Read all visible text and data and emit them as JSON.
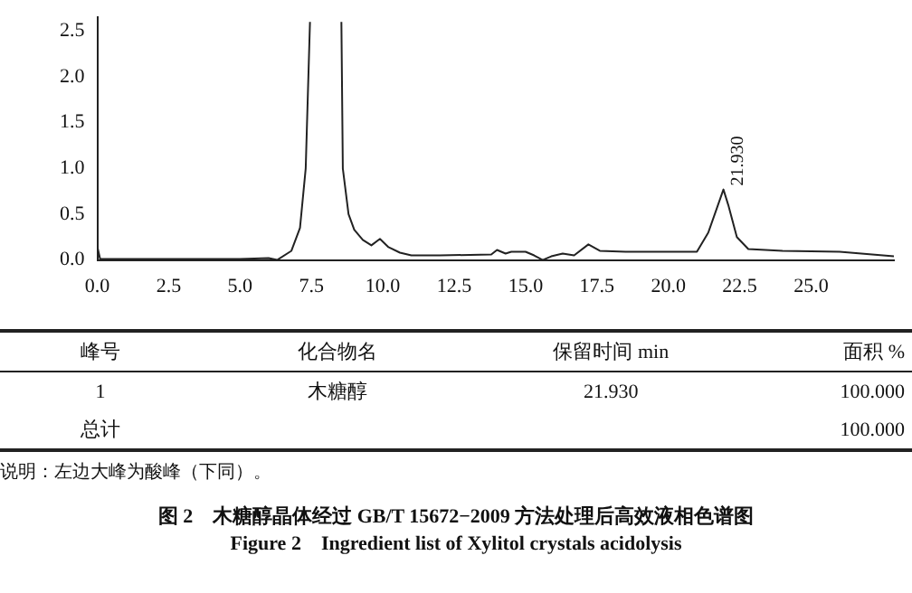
{
  "chart_data": {
    "type": "line",
    "title": "图 2　木糖醇晶体经过 GB/T 15672−2009 方法处理后高效液相色谱图",
    "subtitle": "Figure 2　Ingredient list of Xylitol crystals acidolysis",
    "x": [
      0,
      0.1,
      5,
      6,
      6.3,
      6.8,
      7.1,
      7.3,
      7.45,
      8,
      8.55,
      8.6,
      8.8,
      9.0,
      9.3,
      9.6,
      9.9,
      10.2,
      10.6,
      11.0,
      12.0,
      13.8,
      14.0,
      14.3,
      14.5,
      15.0,
      15.3,
      15.6,
      15.9,
      16.3,
      16.7,
      17.2,
      17.6,
      18.5,
      21.0,
      21.4,
      21.93,
      22.1,
      22.4,
      22.8,
      24,
      26,
      27.9
    ],
    "series": [
      {
        "color": "#222222",
        "values": [
          0.15,
          0.01,
          0.01,
          0.02,
          0.0,
          0.1,
          0.35,
          1.0,
          2.6,
          null,
          2.6,
          1.0,
          0.5,
          0.33,
          0.22,
          0.16,
          0.23,
          0.14,
          0.08,
          0.05,
          0.05,
          0.06,
          0.11,
          0.07,
          0.09,
          0.09,
          0.05,
          0.0,
          0.04,
          0.07,
          0.05,
          0.17,
          0.1,
          0.09,
          0.09,
          0.3,
          0.77,
          0.6,
          0.25,
          0.12,
          0.1,
          0.09,
          0.04
        ]
      }
    ],
    "xlim": [
      0,
      27.9
    ],
    "ylim": [
      0,
      2.65
    ],
    "xticks": [
      {
        "value": 0,
        "label": "0.0"
      },
      {
        "value": 2.5,
        "label": "2.5"
      },
      {
        "value": 5,
        "label": "5.0"
      },
      {
        "value": 7.5,
        "label": "7.5"
      },
      {
        "value": 10,
        "label": "10.0"
      },
      {
        "value": 12.5,
        "label": "12.5"
      },
      {
        "value": 15,
        "label": "15.0"
      },
      {
        "value": 17.5,
        "label": "17.5"
      },
      {
        "value": 20,
        "label": "20.0"
      },
      {
        "value": 22.5,
        "label": "22.5"
      },
      {
        "value": 25,
        "label": "25.0"
      }
    ],
    "yticks": [
      {
        "value": 0,
        "label": "0.0"
      },
      {
        "value": 0.5,
        "label": "0.5"
      },
      {
        "value": 1,
        "label": "1.0"
      },
      {
        "value": 1.5,
        "label": "1.5"
      },
      {
        "value": 2,
        "label": "2.0"
      },
      {
        "value": 2.5,
        "label": "2.5"
      }
    ],
    "grid": false,
    "legend": false,
    "marker": "none",
    "line_style": "solid",
    "annotations": [
      {
        "text": "21.930",
        "x": 21.93,
        "y": 0.77
      },
      "峰号",
      "化合物名",
      "保留时间 min",
      "面积 %",
      "1",
      "木糖醇",
      "21.930",
      "100.000",
      "总计",
      "100.000",
      "说明：左边大峰为酸峰（下同）。"
    ]
  }
}
